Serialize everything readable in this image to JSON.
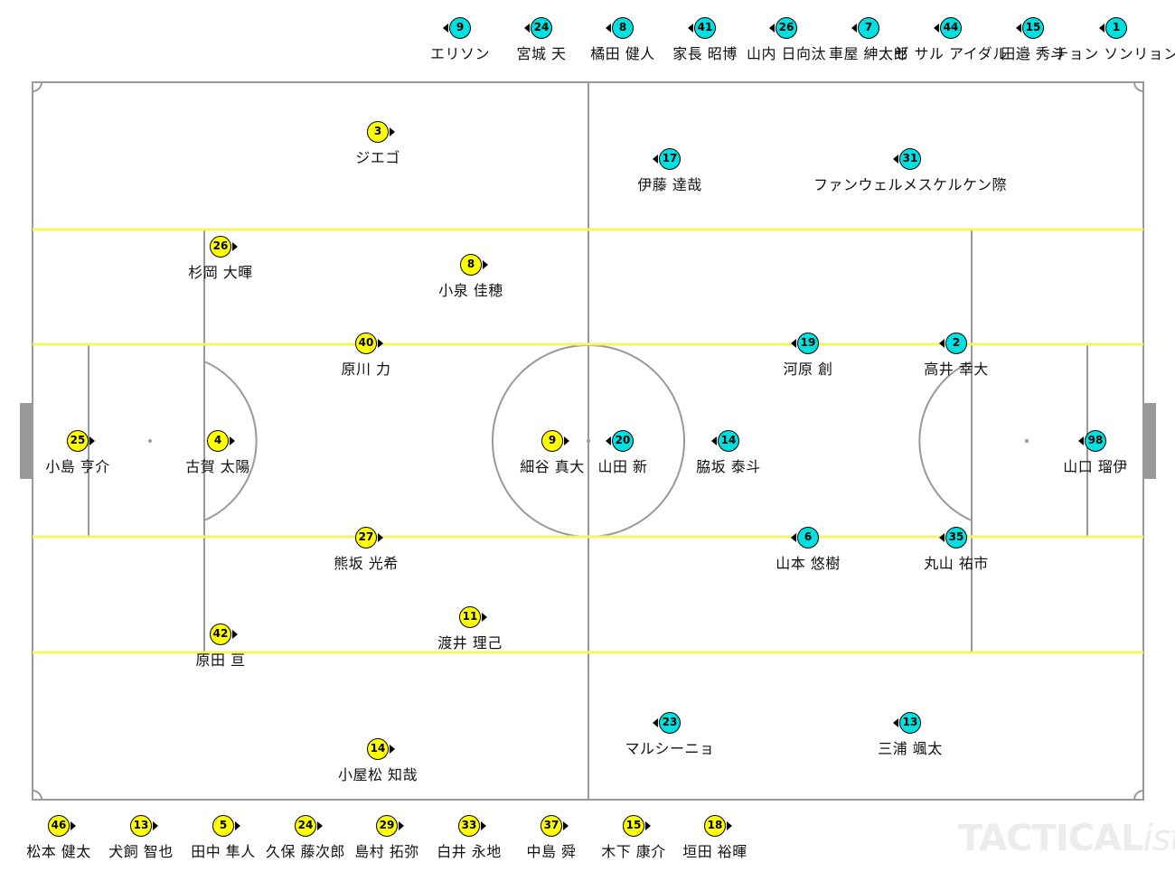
{
  "colors": {
    "home": "#ffff00",
    "away": "#00e0e0",
    "zone_line": "#f5f560",
    "pitch_line": "#999999"
  },
  "watermark": {
    "bold": "TACTICAL",
    "italic": "ista"
  },
  "home": {
    "starters": [
      {
        "number": "25",
        "name": "小島 亨介"
      },
      {
        "number": "4",
        "name": "古賀 太陽"
      },
      {
        "number": "3",
        "name": "ジエゴ"
      },
      {
        "number": "26",
        "name": "杉岡 大暉"
      },
      {
        "number": "40",
        "name": "原川 力"
      },
      {
        "number": "27",
        "name": "熊坂 光希"
      },
      {
        "number": "42",
        "name": "原田 亘"
      },
      {
        "number": "14",
        "name": "小屋松 知哉"
      },
      {
        "number": "8",
        "name": "小泉 佳穂"
      },
      {
        "number": "11",
        "name": "渡井 理己"
      },
      {
        "number": "9",
        "name": "細谷 真大"
      }
    ],
    "bench": [
      {
        "number": "46",
        "name": "松本 健太"
      },
      {
        "number": "13",
        "name": "犬飼 智也"
      },
      {
        "number": "5",
        "name": "田中 隼人"
      },
      {
        "number": "24",
        "name": "久保 藤次郎"
      },
      {
        "number": "29",
        "name": "島村 拓弥"
      },
      {
        "number": "33",
        "name": "白井 永地"
      },
      {
        "number": "37",
        "name": "中島 舜"
      },
      {
        "number": "15",
        "name": "木下 康介"
      },
      {
        "number": "18",
        "name": "垣田 裕暉"
      }
    ]
  },
  "away": {
    "starters": [
      {
        "number": "98",
        "name": "山口 瑠伊"
      },
      {
        "number": "2",
        "name": "高井 幸大"
      },
      {
        "number": "35",
        "name": "丸山 祐市"
      },
      {
        "number": "31",
        "name": "ファンウェルメスケルケン際"
      },
      {
        "number": "13",
        "name": "三浦 颯太"
      },
      {
        "number": "19",
        "name": "河原 創"
      },
      {
        "number": "6",
        "name": "山本 悠樹"
      },
      {
        "number": "17",
        "name": "伊藤 達哉"
      },
      {
        "number": "23",
        "name": "マルシーニョ"
      },
      {
        "number": "14",
        "name": "脇坂 泰斗"
      },
      {
        "number": "20",
        "name": "山田 新"
      }
    ],
    "bench": [
      {
        "number": "9",
        "name": "エリソン"
      },
      {
        "number": "24",
        "name": "宮城 天"
      },
      {
        "number": "8",
        "name": "橘田 健人"
      },
      {
        "number": "41",
        "name": "家長 昭博"
      },
      {
        "number": "26",
        "name": "山内 日向汰"
      },
      {
        "number": "7",
        "name": "車屋 紳太郎"
      },
      {
        "number": "44",
        "name": "ゼ サル アイダル"
      },
      {
        "number": "15",
        "name": "田邉 秀斗"
      },
      {
        "number": "1",
        "name": "チョン ソンリョン"
      }
    ]
  }
}
